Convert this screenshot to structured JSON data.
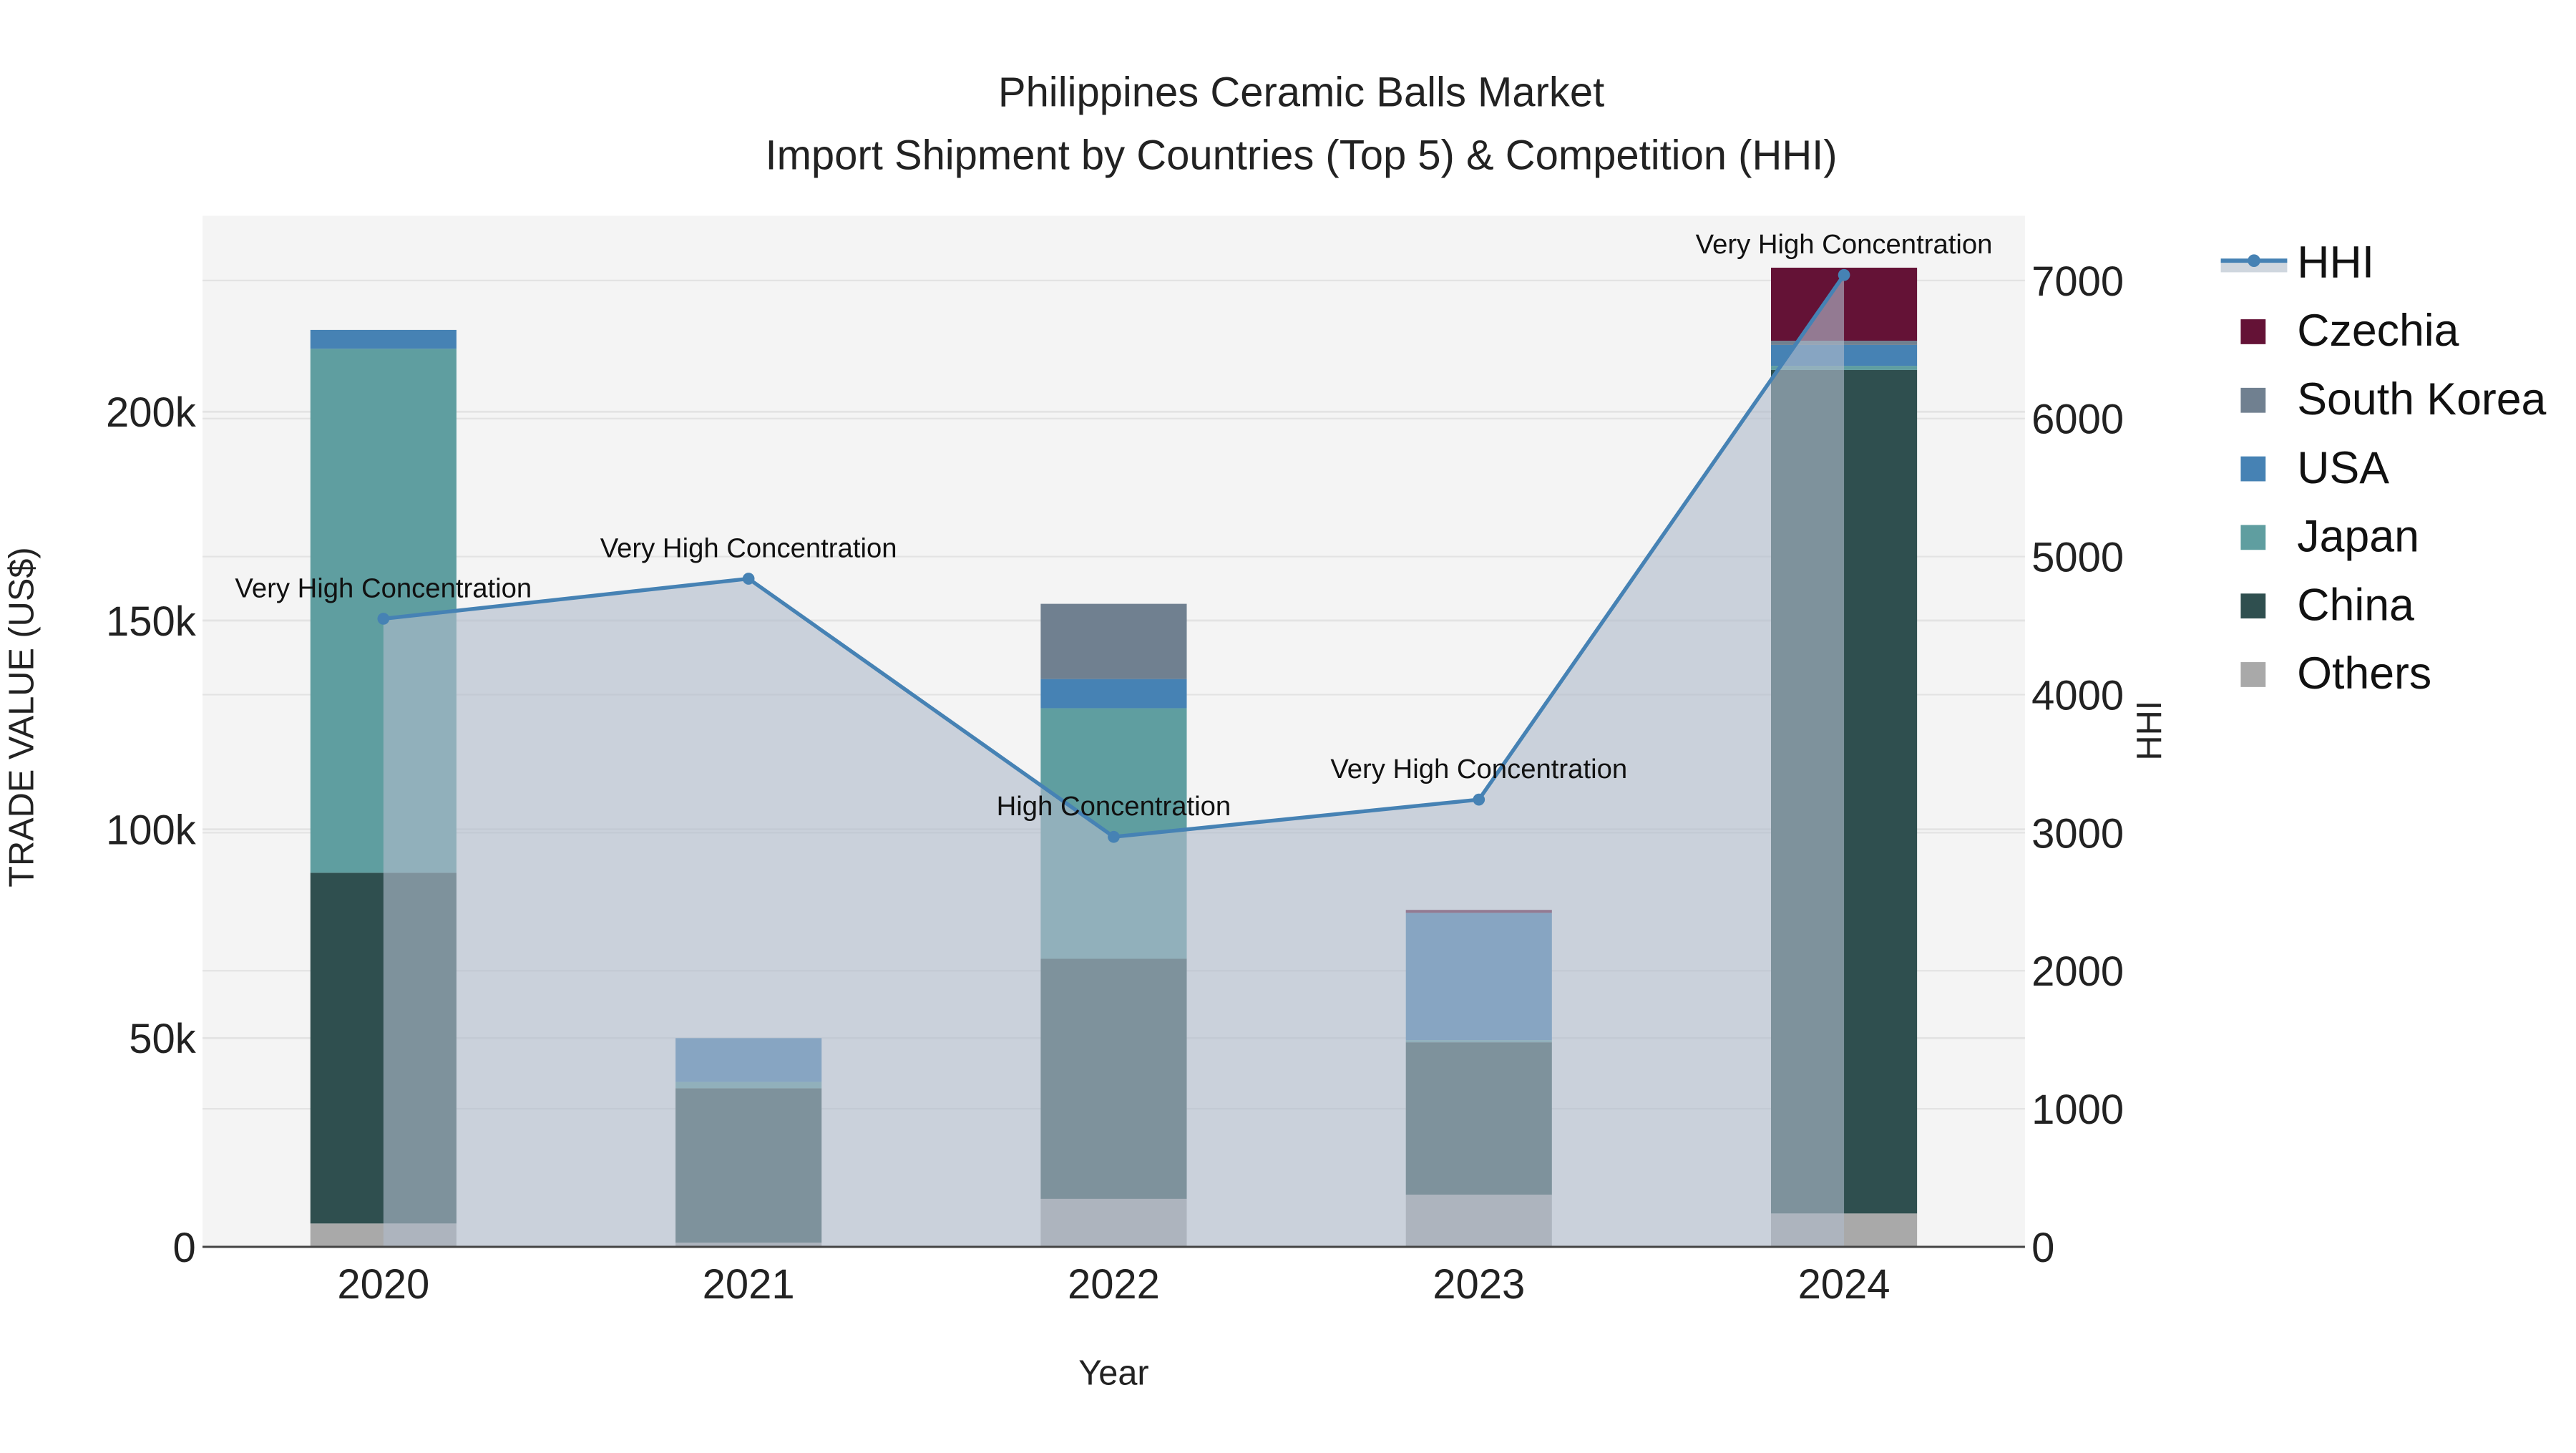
{
  "title": {
    "line1": "Philippines Ceramic Balls Market",
    "line2": "Import Shipment by Countries (Top 5) & Competition (HHI)"
  },
  "axes": {
    "x_label": "Year",
    "y_left_label": "TRADE VALUE (US$)",
    "y_right_label": "HHI",
    "y_left_ticks": [
      "0",
      "50k",
      "100k",
      "150k",
      "200k"
    ],
    "y_left_tick_values": [
      0,
      50000,
      100000,
      150000,
      200000
    ],
    "y_right_ticks": [
      "0",
      "1000",
      "2000",
      "3000",
      "4000",
      "5000",
      "6000",
      "7000"
    ],
    "y_right_tick_values": [
      0,
      1000,
      2000,
      3000,
      4000,
      5000,
      6000,
      7000
    ]
  },
  "legend": {
    "items": [
      {
        "label": "HHI",
        "type": "line",
        "color": "#4682b4"
      },
      {
        "label": "Czechia",
        "type": "box",
        "color": "#641236"
      },
      {
        "label": "South Korea",
        "type": "box",
        "color": "#708090"
      },
      {
        "label": "USA",
        "type": "box",
        "color": "#4682b4"
      },
      {
        "label": "Japan",
        "type": "box",
        "color": "#5f9ea0"
      },
      {
        "label": "China",
        "type": "box",
        "color": "#2f4f4f"
      },
      {
        "label": "Others",
        "type": "box",
        "color": "#a9a9a9"
      }
    ]
  },
  "colors": {
    "plot_bg": "#f4f4f4",
    "grid": "#e3e3e3",
    "hhi_line": "#4682b4",
    "hhi_fill": "rgba(176,188,204,0.62)",
    "axis_line": "#444444"
  },
  "chart_data": {
    "type": "bar",
    "stacked": true,
    "title": "Philippines Ceramic Balls Market — Import Shipment by Countries (Top 5) & Competition (HHI)",
    "xlabel": "Year",
    "ylabel": "TRADE VALUE (US$)",
    "y2label": "HHI",
    "categories": [
      "2020",
      "2021",
      "2022",
      "2023",
      "2024"
    ],
    "ylim": [
      0,
      247000
    ],
    "y2lim": [
      0,
      7450
    ],
    "grid": true,
    "legend_position": "right",
    "series": [
      {
        "name": "Others",
        "color": "#a9a9a9",
        "values": [
          5600,
          1000,
          11500,
          12500,
          8000
        ]
      },
      {
        "name": "China",
        "color": "#2f4f4f",
        "values": [
          84000,
          37000,
          57500,
          36500,
          202000
        ]
      },
      {
        "name": "Japan",
        "color": "#5f9ea0",
        "values": [
          125500,
          1500,
          60000,
          500,
          1000
        ]
      },
      {
        "name": "USA",
        "color": "#4682b4",
        "values": [
          4500,
          10500,
          7000,
          30500,
          5000
        ]
      },
      {
        "name": "South Korea",
        "color": "#708090",
        "values": [
          0,
          0,
          18000,
          0,
          1000
        ]
      },
      {
        "name": "Czechia",
        "color": "#641236",
        "values": [
          0,
          0,
          0,
          700,
          17500
        ]
      }
    ],
    "hhi": {
      "name": "HHI",
      "axis": "right",
      "type": "line+area",
      "values": [
        4550,
        4840,
        2970,
        3240,
        7040
      ],
      "annotations": [
        "Very High Concentration",
        "Very High Concentration",
        "High Concentration",
        "Very High Concentration",
        "Very High Concentration"
      ]
    }
  }
}
